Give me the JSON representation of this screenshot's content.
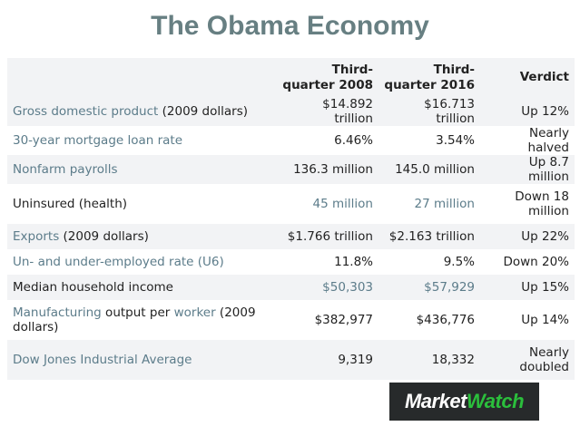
{
  "title": "The Obama Economy",
  "headers": [
    "",
    "Third-quarter 2008",
    "Third-quarter 2016",
    "Verdict"
  ],
  "rows": [
    {
      "label": [
        {
          "text": "Gross domestic product",
          "link": true
        },
        {
          "text": " (2009 dollars)",
          "link": false
        }
      ],
      "c1": "$14.892 trillion",
      "c2": "$16.713 trillion",
      "c3": "Up 12%"
    },
    {
      "label": [
        {
          "text": "30-year mortgage loan rate",
          "link": true
        }
      ],
      "c1": "6.46%",
      "c2": "3.54%",
      "c3": "Nearly halved"
    },
    {
      "label": [
        {
          "text": "Nonfarm payrolls",
          "link": true
        }
      ],
      "c1": "136.3 million",
      "c2": "145.0 million",
      "c3": "Up 8.7 million"
    },
    {
      "label": [
        {
          "text": "Uninsured (health)",
          "link": false
        }
      ],
      "c1": "45 million",
      "c2": "27 million",
      "c3": "Down 18 million",
      "link_values": true
    },
    {
      "label": [
        {
          "text": "Exports",
          "link": true
        },
        {
          "text": " (2009 dollars)",
          "link": false
        }
      ],
      "c1": "$1.766 trillion",
      "c2": "$2.163 trillion",
      "c3": "Up 22%"
    },
    {
      "label": [
        {
          "text": "Un- and under-employed rate (U6)",
          "link": true
        }
      ],
      "c1": "11.8%",
      "c2": "9.5%",
      "c3": "Down 20%"
    },
    {
      "label": [
        {
          "text": "Median household income",
          "link": false
        }
      ],
      "c1": "$50,303",
      "c2": "$57,929",
      "c3": "Up 15%",
      "link_values": true
    },
    {
      "label": [
        {
          "text": "Manufacturing",
          "link": true
        },
        {
          "text": " output per ",
          "link": false
        },
        {
          "text": "worker",
          "link": true
        },
        {
          "text": " (2009 dollars)",
          "link": false
        }
      ],
      "c1": "$382,977",
      "c2": "$436,776",
      "c3": "Up 14%"
    },
    {
      "label": [
        {
          "text": "Dow Jones Industrial Average",
          "link": true
        }
      ],
      "c1": "9,319",
      "c2": "18,332",
      "c3": "Nearly doubled"
    }
  ],
  "logo": {
    "part1": "Market",
    "part2": "Watch",
    "colors": {
      "bg": "#272a2b",
      "accent": "#2bbf3c"
    }
  }
}
